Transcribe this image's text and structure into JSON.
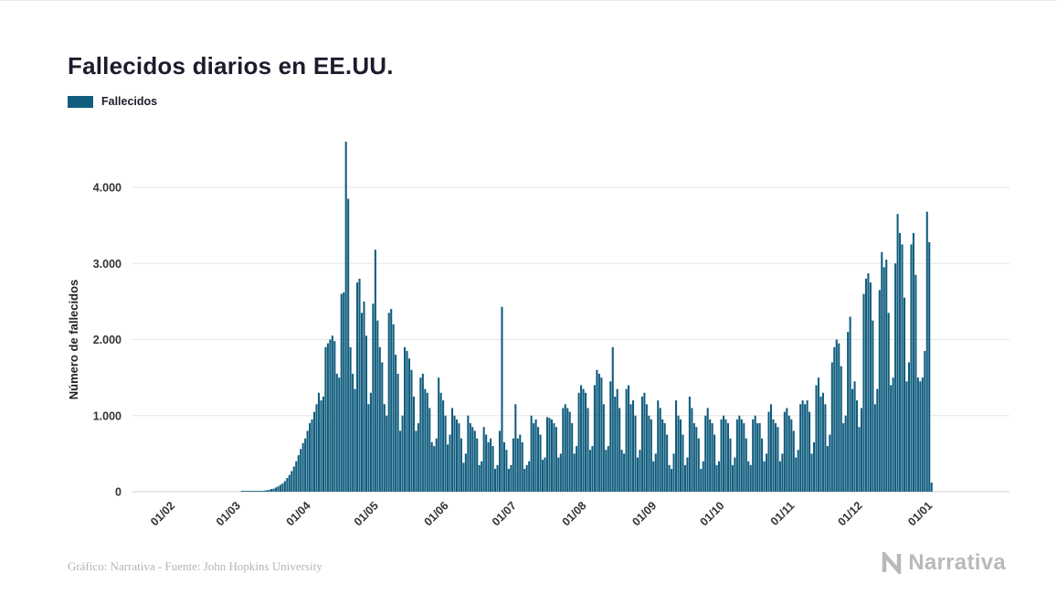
{
  "title": "Fallecidos diarios en EE.UU.",
  "legend": {
    "label": "Fallecidos",
    "color": "#115d7e"
  },
  "footer": {
    "credit": "Gráfico: Narrativa - Fuente: John Hopkins University",
    "logo_text": "Narrativa"
  },
  "chart_data": {
    "type": "bar",
    "title": "Fallecidos diarios en EE.UU.",
    "series_name": "Fallecidos",
    "xlabel": "",
    "ylabel": "Número de fallecidos",
    "bar_color": "#115d7e",
    "grid_color": "#e6e6e6",
    "axis_line_color": "#cfcfcf",
    "tick_label_color": "#333333",
    "legend_position": "top-left",
    "grid": true,
    "ylim": [
      0,
      4000
    ],
    "yticks": [
      {
        "value": 0,
        "label": "0"
      },
      {
        "value": 1000,
        "label": "1.000"
      },
      {
        "value": 2000,
        "label": "2.000"
      },
      {
        "value": 3000,
        "label": "3.000"
      },
      {
        "value": 4000,
        "label": "4.000"
      }
    ],
    "xticks": [
      {
        "date": "2020-02-01",
        "label": "01/02"
      },
      {
        "date": "2020-03-01",
        "label": "01/03"
      },
      {
        "date": "2020-04-01",
        "label": "01/04"
      },
      {
        "date": "2020-05-01",
        "label": "01/05"
      },
      {
        "date": "2020-06-01",
        "label": "01/06"
      },
      {
        "date": "2020-07-01",
        "label": "01/07"
      },
      {
        "date": "2020-08-01",
        "label": "01/08"
      },
      {
        "date": "2020-09-01",
        "label": "01/09"
      },
      {
        "date": "2020-10-01",
        "label": "01/10"
      },
      {
        "date": "2020-11-01",
        "label": "01/11"
      },
      {
        "date": "2020-12-01",
        "label": "01/12"
      },
      {
        "date": "2021-01-01",
        "label": "01/01"
      }
    ],
    "start_date": "2020-01-22",
    "values": [
      0,
      0,
      0,
      0,
      0,
      0,
      0,
      0,
      0,
      0,
      0,
      0,
      0,
      0,
      0,
      0,
      0,
      0,
      0,
      0,
      0,
      0,
      0,
      0,
      0,
      0,
      0,
      0,
      0,
      0,
      0,
      0,
      0,
      0,
      0,
      0,
      0,
      0,
      0,
      1,
      1,
      2,
      3,
      4,
      5,
      6,
      8,
      10,
      12,
      15,
      18,
      25,
      35,
      40,
      55,
      70,
      90,
      110,
      140,
      180,
      220,
      270,
      330,
      400,
      480,
      560,
      640,
      700,
      800,
      900,
      950,
      1050,
      1150,
      1300,
      1200,
      1250,
      1900,
      1950,
      2000,
      2050,
      1980,
      1550,
      1500,
      2600,
      2620,
      4600,
      3850,
      1900,
      1550,
      1350,
      2750,
      2800,
      2350,
      2500,
      2050,
      1150,
      1300,
      2470,
      3180,
      2250,
      1900,
      1700,
      1150,
      1000,
      2350,
      2400,
      2200,
      1800,
      1550,
      800,
      1000,
      1900,
      1850,
      1750,
      1600,
      1250,
      800,
      900,
      1500,
      1550,
      1350,
      1300,
      1100,
      650,
      600,
      700,
      1500,
      1300,
      1200,
      1000,
      620,
      750,
      1100,
      1000,
      950,
      900,
      700,
      380,
      500,
      1000,
      900,
      850,
      800,
      700,
      350,
      400,
      850,
      750,
      650,
      700,
      600,
      300,
      350,
      800,
      2430,
      650,
      550,
      300,
      350,
      700,
      1150,
      700,
      750,
      650,
      300,
      350,
      400,
      1000,
      900,
      950,
      850,
      750,
      420,
      450,
      980,
      970,
      950,
      900,
      850,
      450,
      500,
      1100,
      1150,
      1100,
      1050,
      900,
      500,
      600,
      1300,
      1400,
      1350,
      1300,
      1100,
      550,
      600,
      1400,
      1600,
      1550,
      1500,
      1150,
      550,
      600,
      1450,
      1900,
      1250,
      1350,
      1100,
      550,
      500,
      1350,
      1400,
      1150,
      1200,
      1000,
      450,
      550,
      1250,
      1300,
      1150,
      1000,
      950,
      400,
      500,
      1200,
      1100,
      950,
      900,
      750,
      350,
      300,
      500,
      1200,
      1000,
      950,
      750,
      350,
      450,
      1250,
      1100,
      900,
      850,
      700,
      300,
      400,
      1000,
      1100,
      950,
      900,
      750,
      350,
      400,
      950,
      1000,
      950,
      900,
      700,
      350,
      450,
      950,
      1000,
      950,
      900,
      700,
      400,
      350,
      950,
      1000,
      900,
      900,
      700,
      400,
      500,
      1050,
      1150,
      950,
      900,
      850,
      400,
      500,
      1050,
      1100,
      1000,
      950,
      800,
      450,
      550,
      1150,
      1200,
      1150,
      1200,
      1050,
      500,
      650,
      1400,
      1500,
      1250,
      1300,
      1150,
      600,
      750,
      1700,
      1900,
      2000,
      1950,
      1650,
      900,
      1000,
      2100,
      2300,
      1350,
      1450,
      1200,
      850,
      1100,
      2600,
      2800,
      2870,
      2750,
      2250,
      1150,
      1350,
      2650,
      3150,
      2950,
      3050,
      2350,
      1400,
      1500,
      3000,
      3650,
      3400,
      3250,
      2550,
      1450,
      1700,
      3250,
      3400,
      2850,
      1500,
      1450,
      1500,
      1850,
      3680,
      3280,
      120
    ]
  }
}
